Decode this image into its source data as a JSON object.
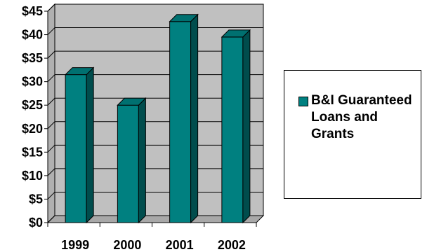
{
  "chart_data": {
    "type": "bar",
    "title": "",
    "xlabel": "",
    "ylabel": "",
    "categories": [
      "1999",
      "2000",
      "2001",
      "2002"
    ],
    "series": [
      {
        "name": "B&I Guaranteed Loans and Grants",
        "values": [
          31.5,
          25,
          42.8,
          39.5
        ]
      }
    ],
    "ylim": [
      0,
      45
    ],
    "yticks": [
      0,
      5,
      10,
      15,
      20,
      25,
      30,
      35,
      40,
      45
    ],
    "ytick_labels": [
      "$0",
      "$5",
      "$10",
      "$15",
      "$20",
      "$25",
      "$30",
      "$35",
      "$40",
      "$45"
    ],
    "grid": true,
    "legend_position": "right",
    "colors": {
      "bar_front": "#008080",
      "bar_side": "#004d4d",
      "bar_top": "#007070",
      "plot_wall": "#c0c0c0"
    }
  }
}
